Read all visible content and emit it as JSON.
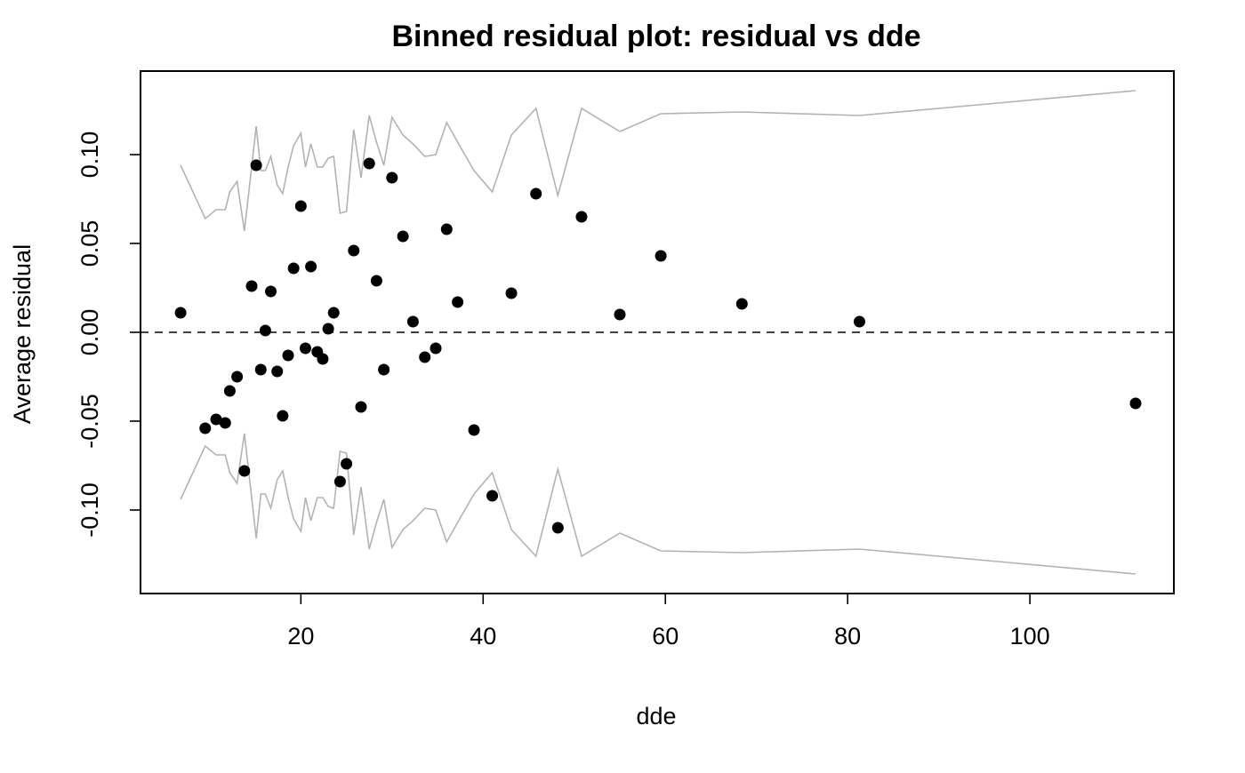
{
  "chart_data": {
    "type": "scatter",
    "title": "Binned residual plot: residual vs dde",
    "xlabel": "dde",
    "ylabel": "Average residual",
    "xlim": [
      2.4,
      115.8
    ],
    "ylim": [
      -0.147,
      0.147
    ],
    "x_ticks": [
      20,
      40,
      60,
      80,
      100
    ],
    "x_tick_labels": [
      "20",
      "40",
      "60",
      "80",
      "100"
    ],
    "y_ticks": [
      -0.1,
      -0.05,
      0.0,
      0.05,
      0.1
    ],
    "y_tick_labels": [
      "-0.10",
      "-0.05",
      "0.00",
      "0.05",
      "0.10"
    ],
    "reference_line": {
      "y": 0,
      "style": "dashed",
      "color": "#000000"
    },
    "grid": false,
    "colors": {
      "points": "#000000",
      "bounds": "#b3b3b3",
      "axes": "#000000"
    },
    "series": [
      {
        "kind": "points",
        "x": [
          6.8,
          9.5,
          10.7,
          11.7,
          12.2,
          13.0,
          13.8,
          14.6,
          15.1,
          15.6,
          16.1,
          16.7,
          17.4,
          18.0,
          18.6,
          19.2,
          20.0,
          20.5,
          21.1,
          21.8,
          22.4,
          23.0,
          23.6,
          24.3,
          25.0,
          25.8,
          26.6,
          27.5,
          28.3,
          29.1,
          30.0,
          31.2,
          32.3,
          33.6,
          34.8,
          36.0,
          37.2,
          39.0,
          41.0,
          43.1,
          45.8,
          48.2,
          50.8,
          55.0,
          59.5,
          68.4,
          81.3,
          111.6
        ],
        "y": [
          0.011,
          -0.054,
          -0.049,
          -0.051,
          -0.033,
          -0.025,
          -0.078,
          0.026,
          0.094,
          -0.021,
          0.001,
          0.023,
          -0.022,
          -0.047,
          -0.013,
          0.036,
          0.071,
          -0.009,
          0.037,
          -0.011,
          -0.015,
          0.002,
          0.011,
          -0.084,
          -0.074,
          0.046,
          -0.042,
          0.095,
          0.029,
          -0.021,
          0.087,
          0.054,
          0.006,
          -0.014,
          -0.009,
          0.058,
          0.017,
          -0.055,
          -0.092,
          0.022,
          0.078,
          -0.11,
          0.065,
          0.01,
          0.043,
          0.016,
          0.006,
          -0.04
        ]
      },
      {
        "kind": "bounds",
        "x": [
          6.8,
          9.5,
          10.7,
          11.7,
          12.2,
          13.0,
          13.8,
          14.6,
          15.1,
          15.6,
          16.1,
          16.7,
          17.4,
          18.0,
          18.6,
          19.2,
          20.0,
          20.5,
          21.1,
          21.8,
          22.4,
          23.0,
          23.6,
          24.3,
          25.0,
          25.8,
          26.6,
          27.5,
          28.3,
          29.1,
          30.0,
          31.2,
          32.3,
          33.6,
          34.8,
          36.0,
          37.2,
          39.0,
          41.0,
          43.1,
          45.8,
          48.2,
          50.8,
          55.0,
          59.5,
          68.4,
          81.3,
          111.6
        ],
        "upper": [
          0.094,
          0.064,
          0.069,
          0.069,
          0.079,
          0.085,
          0.057,
          0.093,
          0.116,
          0.091,
          0.091,
          0.099,
          0.083,
          0.078,
          0.093,
          0.105,
          0.112,
          0.093,
          0.106,
          0.093,
          0.093,
          0.098,
          0.099,
          0.067,
          0.068,
          0.114,
          0.087,
          0.122,
          0.107,
          0.094,
          0.121,
          0.111,
          0.106,
          0.099,
          0.1,
          0.118,
          0.107,
          0.091,
          0.079,
          0.111,
          0.126,
          0.077,
          0.126,
          0.113,
          0.123,
          0.124,
          0.122,
          0.136
        ],
        "lower": [
          -0.094,
          -0.064,
          -0.069,
          -0.069,
          -0.079,
          -0.085,
          -0.057,
          -0.093,
          -0.116,
          -0.091,
          -0.091,
          -0.099,
          -0.083,
          -0.078,
          -0.093,
          -0.105,
          -0.112,
          -0.093,
          -0.106,
          -0.093,
          -0.093,
          -0.098,
          -0.099,
          -0.067,
          -0.068,
          -0.114,
          -0.087,
          -0.122,
          -0.107,
          -0.094,
          -0.121,
          -0.111,
          -0.106,
          -0.099,
          -0.1,
          -0.118,
          -0.107,
          -0.091,
          -0.079,
          -0.111,
          -0.126,
          -0.077,
          -0.126,
          -0.113,
          -0.123,
          -0.124,
          -0.122,
          -0.136
        ]
      }
    ]
  }
}
